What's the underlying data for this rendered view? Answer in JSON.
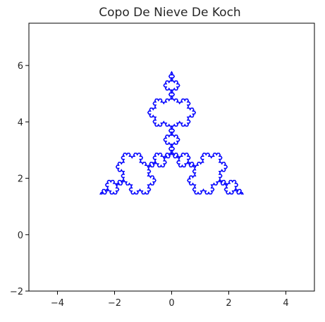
{
  "chart_data": {
    "type": "line",
    "title": "Copo De Nieve De Koch",
    "xlabel": "",
    "ylabel": "",
    "xlim": [
      -5,
      5
    ],
    "ylim": [
      -2,
      7.5
    ],
    "x_ticks": [
      -4,
      -2,
      0,
      2,
      4
    ],
    "y_ticks": [
      -2,
      0,
      2,
      4,
      6
    ],
    "grid": false,
    "series": [
      {
        "name": "",
        "color": "#0000ff",
        "curve": "koch-snowflake",
        "recursion_order": 4,
        "base_triangle": [
          [
            -2.5,
            1.443
          ],
          [
            0,
            5.774
          ],
          [
            2.5,
            1.443
          ]
        ]
      }
    ]
  }
}
